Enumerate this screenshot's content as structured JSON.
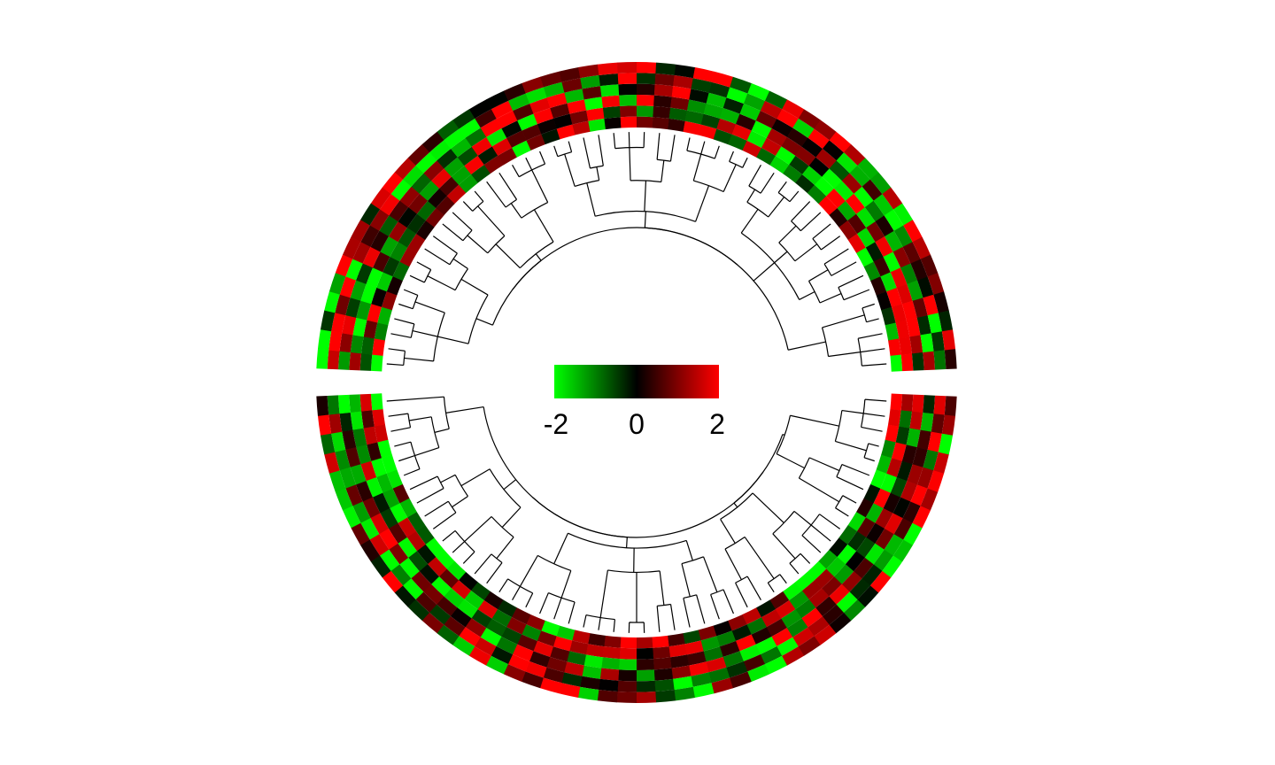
{
  "chart_data": {
    "type": "heatmap",
    "layout": "circular",
    "sectors": 2,
    "tracks_per_sector": 6,
    "cells_per_sector": 50,
    "value_range": [
      -2,
      2
    ],
    "color_scale": {
      "low": "#00ff00",
      "mid": "#000000",
      "high": "#ff0000"
    },
    "legend": {
      "placement": "center",
      "ticks": [
        {
          "label": "-2",
          "value": -2
        },
        {
          "label": "0",
          "value": 0
        },
        {
          "label": "2",
          "value": 2
        }
      ]
    },
    "title": "",
    "dendrogram": true,
    "matrix_seed": 7
  }
}
